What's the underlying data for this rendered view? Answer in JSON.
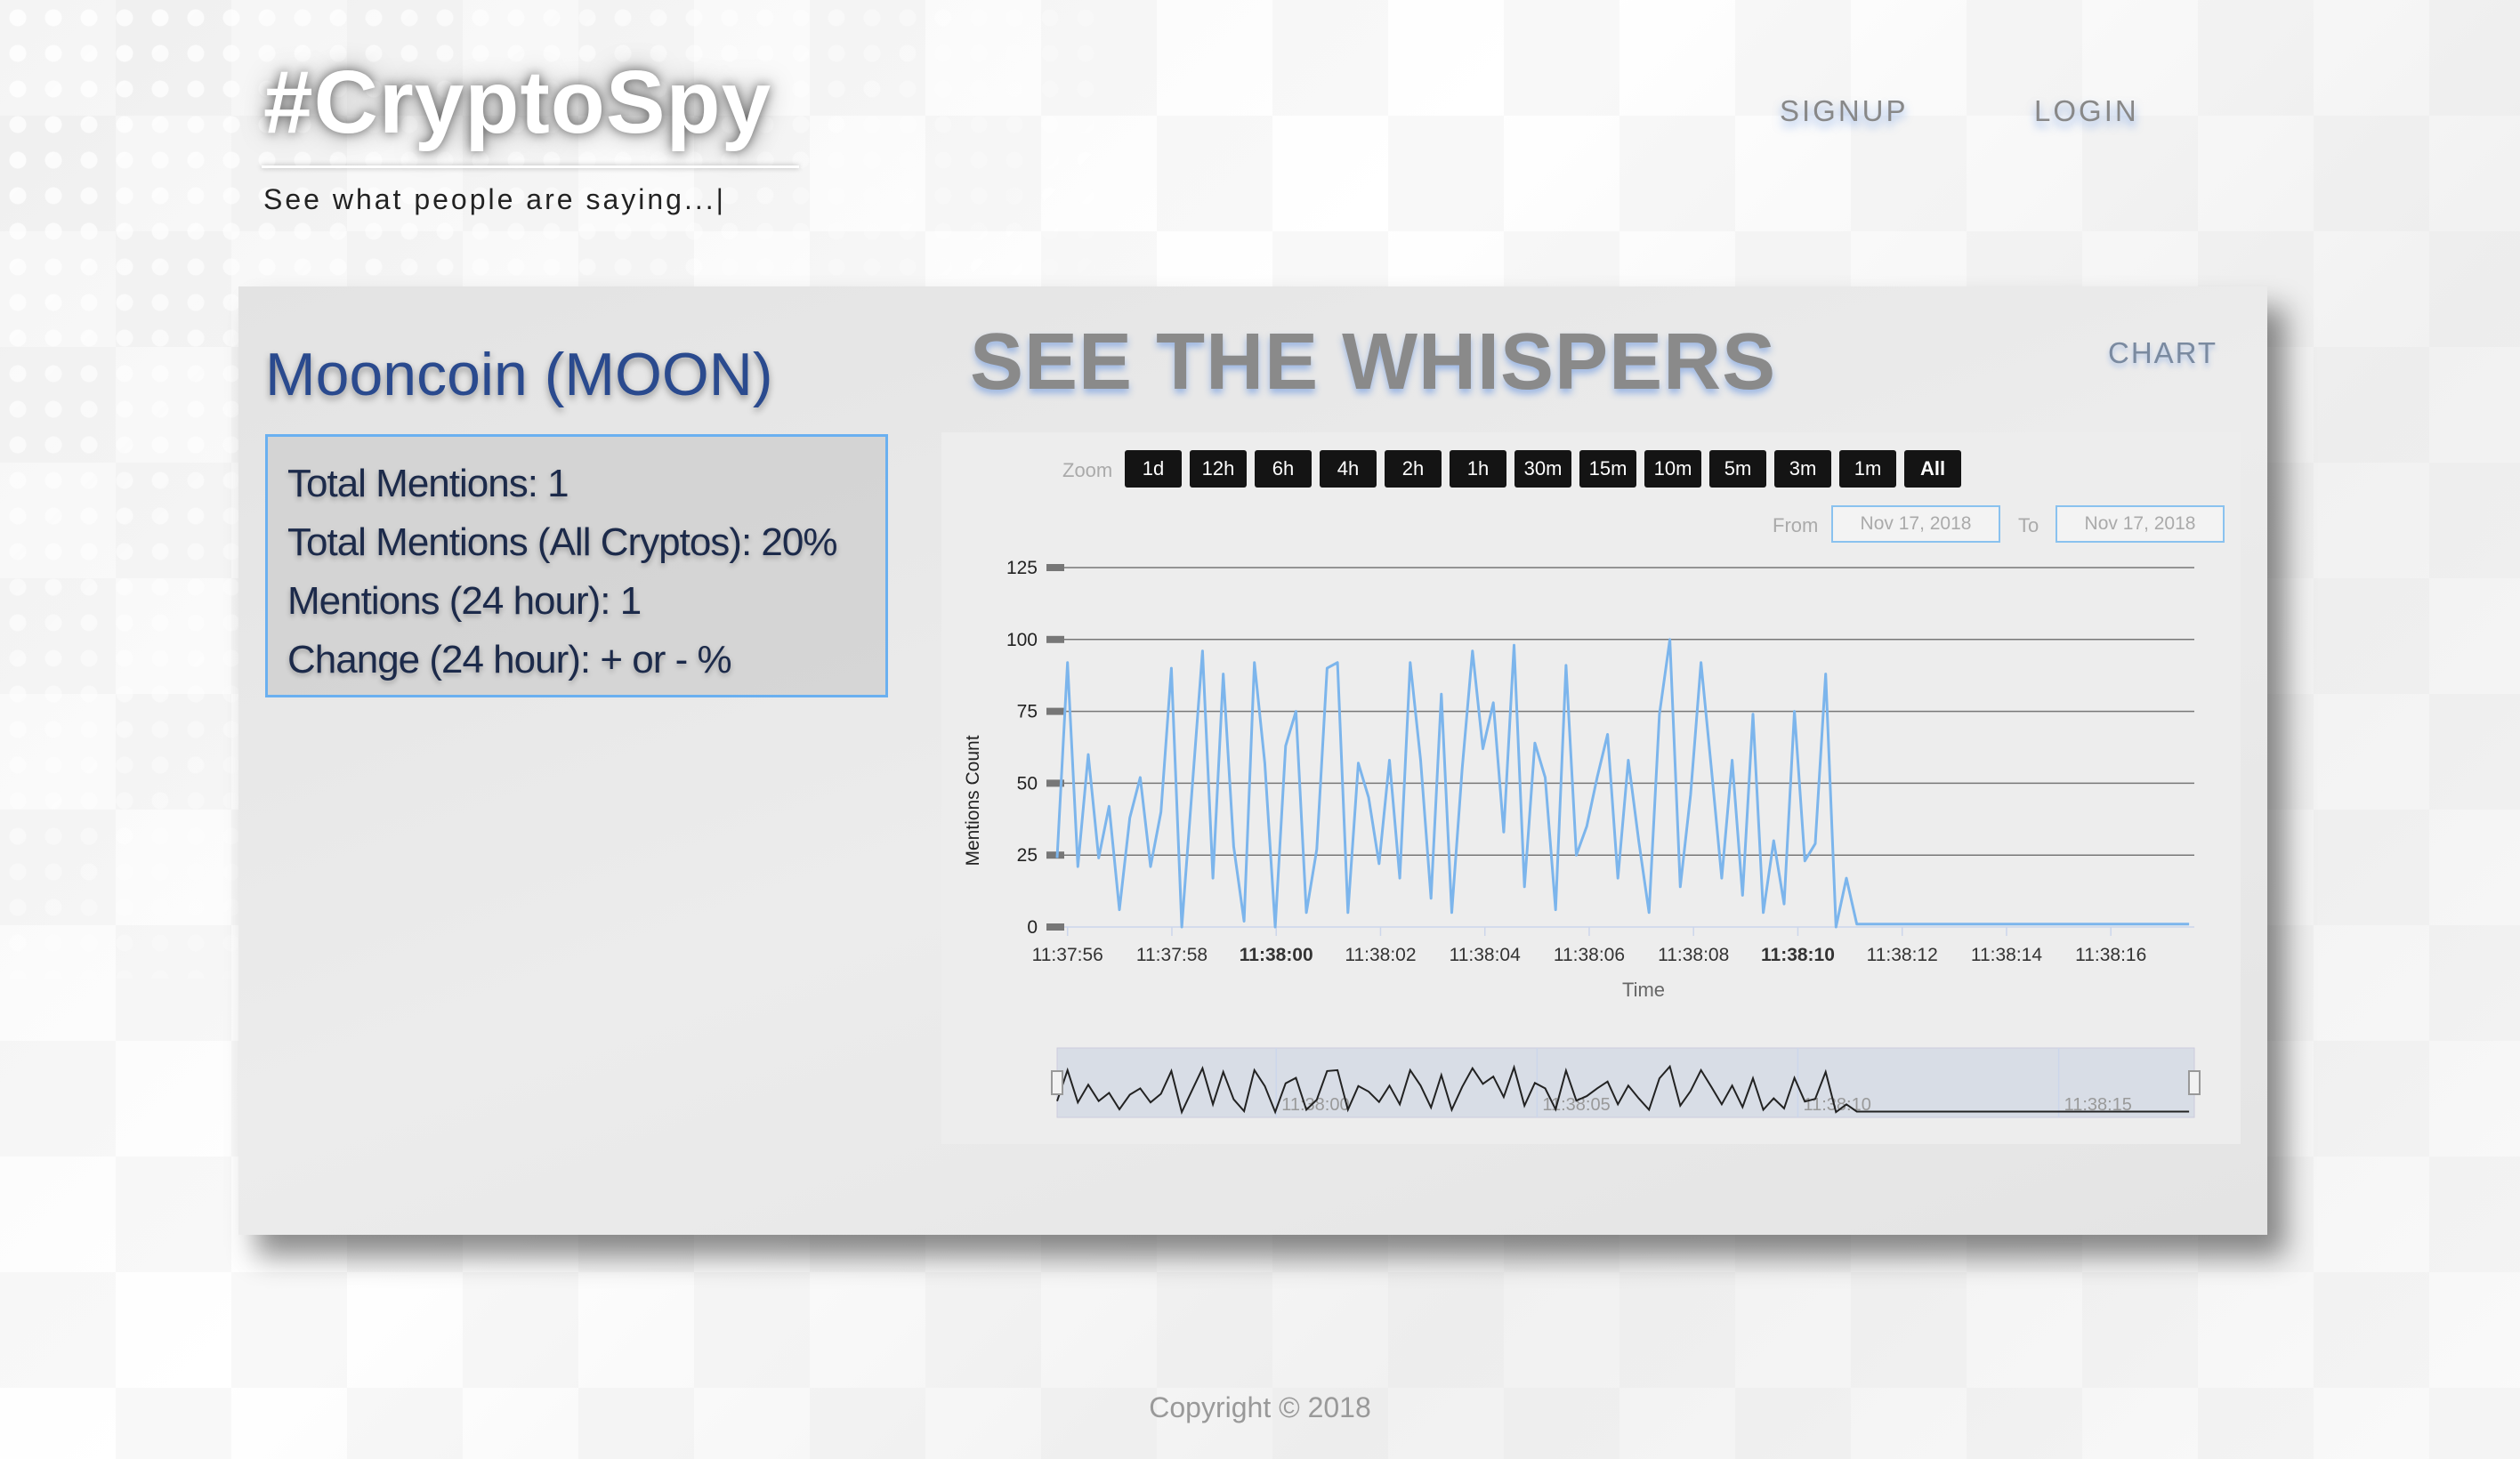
{
  "header": {
    "logo": "#CryptoSpy",
    "tagline": "See what people are saying...|",
    "nav": {
      "signup": "SIGNUP",
      "login": "LOGIN"
    }
  },
  "coin": {
    "name": "Mooncoin (MOON)",
    "stats": [
      "Total Mentions: 1",
      "Total Mentions (All Cryptos): 20%",
      "Mentions (24 hour): 1",
      "Change (24 hour): + or - %"
    ]
  },
  "section": {
    "title": "SEE THE WHISPERS",
    "chart_link": "CHART"
  },
  "zoom": {
    "label": "Zoom",
    "buttons": [
      "1d",
      "12h",
      "6h",
      "4h",
      "2h",
      "1h",
      "30m",
      "15m",
      "10m",
      "5m",
      "3m",
      "1m",
      "All"
    ],
    "selected": "All"
  },
  "range": {
    "from_label": "From",
    "from_value": "Nov 17, 2018",
    "to_label": "To",
    "to_value": "Nov 17, 2018"
  },
  "chart_data": {
    "type": "line",
    "xlabel": "Time",
    "ylabel": "Mentions Count",
    "ylim": [
      0,
      125
    ],
    "yticks": [
      0,
      25,
      50,
      75,
      100,
      125
    ],
    "xticks": [
      "11:37:56",
      "11:37:58",
      "11:38:00",
      "11:38:02",
      "11:38:04",
      "11:38:06",
      "11:38:08",
      "11:38:10",
      "11:38:12",
      "11:38:14",
      "11:38:16"
    ],
    "x_start_sec": 55.8,
    "x_end_sec": 77.6,
    "navigator_ticks": [
      "11:38:00",
      "11:38:05",
      "11:38:10",
      "11:38:15"
    ],
    "series": [
      {
        "name": "",
        "color": "#7cb5ec",
        "values": [
          24,
          92,
          21,
          60,
          24,
          42,
          6,
          38,
          52,
          21,
          40,
          90,
          0,
          48,
          96,
          17,
          88,
          28,
          2,
          92,
          57,
          0,
          63,
          75,
          5,
          27,
          90,
          92,
          5,
          57,
          45,
          22,
          58,
          17,
          92,
          58,
          10,
          81,
          5,
          55,
          96,
          62,
          78,
          33,
          98,
          14,
          64,
          52,
          6,
          91,
          25,
          35,
          52,
          67,
          17,
          58,
          30,
          5,
          74,
          100,
          14,
          46,
          92,
          55,
          17,
          58,
          11,
          74,
          5,
          30,
          8,
          75,
          23,
          29,
          88,
          0,
          17,
          1,
          1,
          1,
          1,
          1,
          1,
          1,
          1,
          1,
          1,
          1,
          1,
          1,
          1,
          1,
          1,
          1,
          1,
          1,
          1,
          1,
          1,
          1,
          1,
          1,
          1,
          1,
          1,
          1,
          1,
          1,
          1,
          1
        ]
      }
    ]
  },
  "footer": {
    "copyright": "Copyright © 2018"
  }
}
